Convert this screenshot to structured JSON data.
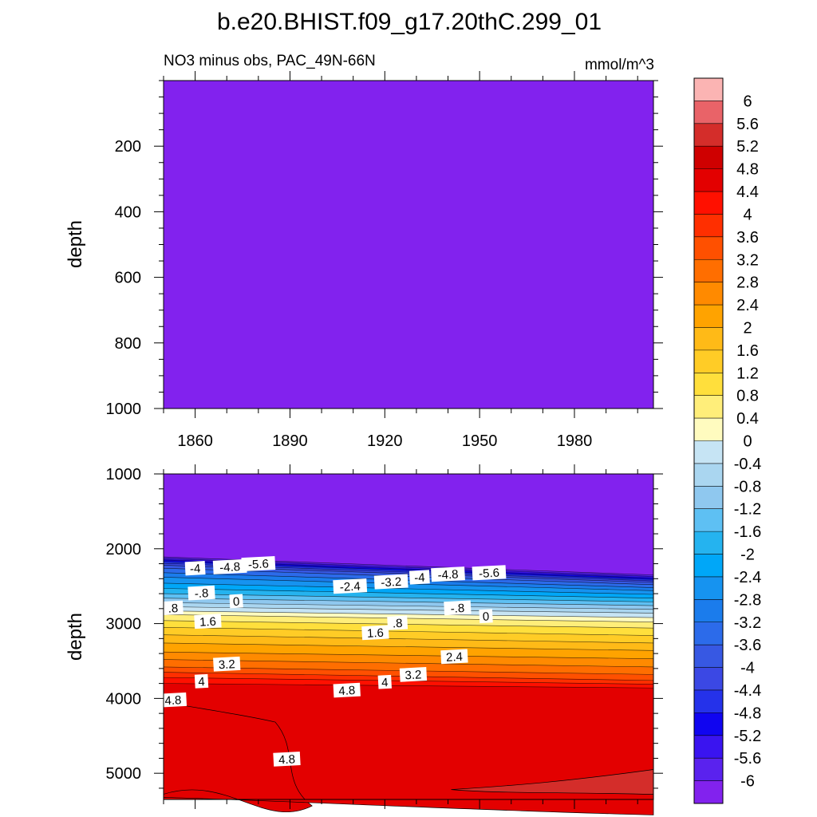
{
  "figure": {
    "title": "b.e20.BHIST.f09_g17.20thC.299_01",
    "left_subtitle": "NO3 minus obs, PAC_49N-66N",
    "right_subtitle": "mmol/m^3"
  },
  "chart_data": [
    {
      "type": "heatmap",
      "panel": "upper",
      "ylabel": "depth",
      "xlim": [
        1850,
        2005
      ],
      "ylim": [
        0,
        1000
      ],
      "y_reversed": true,
      "x_ticks": [
        1860,
        1890,
        1920,
        1950,
        1980
      ],
      "x_tick_labels": [
        "1860",
        "1890",
        "1920",
        "1950",
        "1980"
      ],
      "y_ticks": [
        200,
        400,
        600,
        800,
        1000
      ],
      "y_tick_labels": [
        "200",
        "400",
        "600",
        "800",
        "1000"
      ],
      "field": "uniform value below -6 (lowest color level) over the whole 0-1000 m range"
    },
    {
      "type": "heatmap",
      "panel": "lower",
      "ylabel": "depth",
      "xlim": [
        1850,
        2005
      ],
      "ylim": [
        1000,
        5350
      ],
      "y_reversed": true,
      "x_ticks": [
        1860,
        1890,
        1920,
        1950,
        1980
      ],
      "y_ticks": [
        1000,
        2000,
        3000,
        4000,
        5000
      ],
      "y_tick_labels": [
        "1000",
        "2000",
        "3000",
        "4000",
        "5000"
      ],
      "contour_levels": [
        -6,
        -5.6,
        -5.2,
        -4.8,
        -4.4,
        -4,
        -3.6,
        -3.2,
        -2.8,
        -2.4,
        -2,
        -1.6,
        -1.2,
        -0.8,
        -0.4,
        0,
        0.4,
        0.8,
        1.2,
        1.6,
        2,
        2.4,
        2.8,
        3.2,
        3.6,
        4,
        4.4,
        4.8,
        5.2,
        5.6,
        6
      ],
      "level_depths_start": [
        2110,
        2130,
        2150,
        2170,
        2195,
        2220,
        2260,
        2320,
        2380,
        2460,
        2530,
        2600,
        2660,
        2720,
        2775,
        2830,
        2880,
        2960,
        3050,
        3150,
        3260,
        3380,
        3480,
        3580,
        3650,
        3720,
        3800
      ],
      "level_depths_end": [
        2350,
        2370,
        2390,
        2410,
        2430,
        2450,
        2480,
        2520,
        2560,
        2610,
        2660,
        2710,
        2760,
        2810,
        2860,
        2920,
        2980,
        3060,
        3160,
        3260,
        3360,
        3470,
        3580,
        3680,
        3760,
        3810,
        3860
      ],
      "features": [
        {
          "description": "4.4 to 4.8 tongue near western boundary",
          "depth_top": 4050,
          "depth_bottom": 5280,
          "x_extent": [
            1850,
            1897
          ]
        },
        {
          "description": "5.2 to 5.6 patch in eastern deep region",
          "depth_top": 4950,
          "depth_bottom": 5250,
          "x_extent": [
            1941,
            2005
          ]
        }
      ],
      "contour_labels": [
        {
          "text": "-4",
          "x": 1860,
          "y": 2260
        },
        {
          "text": "-4.8",
          "x": 1871,
          "y": 2240
        },
        {
          "text": "-5.6",
          "x": 1880,
          "y": 2200
        },
        {
          "text": "-2.4",
          "x": 1909,
          "y": 2500
        },
        {
          "text": "-3.2",
          "x": 1922,
          "y": 2440
        },
        {
          "text": "-4",
          "x": 1931,
          "y": 2380
        },
        {
          "text": "-4.8",
          "x": 1940,
          "y": 2340
        },
        {
          "text": "-5.6",
          "x": 1953,
          "y": 2320
        },
        {
          "text": "-.8",
          "x": 1862,
          "y": 2590
        },
        {
          "text": "0",
          "x": 1873,
          "y": 2700
        },
        {
          "text": ".8",
          "x": 1853,
          "y": 2790
        },
        {
          "text": "1.6",
          "x": 1864,
          "y": 2970
        },
        {
          "text": "-.8",
          "x": 1943,
          "y": 2790
        },
        {
          "text": "0",
          "x": 1952,
          "y": 2900
        },
        {
          "text": ".8",
          "x": 1924,
          "y": 2990
        },
        {
          "text": "1.6",
          "x": 1917,
          "y": 3120
        },
        {
          "text": "2.4",
          "x": 1942,
          "y": 3440
        },
        {
          "text": "3.2",
          "x": 1870,
          "y": 3540
        },
        {
          "text": "4",
          "x": 1862,
          "y": 3770
        },
        {
          "text": "3.2",
          "x": 1929,
          "y": 3680
        },
        {
          "text": "4",
          "x": 1920,
          "y": 3780
        },
        {
          "text": "4.8",
          "x": 1908,
          "y": 3890
        },
        {
          "text": "4.8",
          "x": 1853,
          "y": 4020
        },
        {
          "text": "4.8",
          "x": 1889,
          "y": 4810
        }
      ]
    }
  ],
  "colorbar": {
    "labels": [
      "6",
      "5.6",
      "5.2",
      "4.8",
      "4.4",
      "4",
      "3.6",
      "3.2",
      "2.8",
      "2.4",
      "2",
      "1.6",
      "1.2",
      "0.8",
      "0.4",
      "0",
      "-0.4",
      "-0.8",
      "-1.2",
      "-1.6",
      "-2",
      "-2.4",
      "-2.8",
      "-3.2",
      "-3.6",
      "-4",
      "-4.4",
      "-4.8",
      "-5.2",
      "-5.6",
      "-6"
    ],
    "colors": [
      "#fbb4b3",
      "#e96368",
      "#d42d2a",
      "#cf0000",
      "#e30000",
      "#ff1000",
      "#ff2f00",
      "#ff5000",
      "#ff6e00",
      "#ff8a00",
      "#ffa300",
      "#ffba17",
      "#ffcc26",
      "#ffdf3c",
      "#ffee7a",
      "#fffbbf",
      "#c6e4f4",
      "#aad6f0",
      "#8fc8ef",
      "#5ec0f3",
      "#25b3ef",
      "#00a7f8",
      "#1693f0",
      "#1b7cec",
      "#2c6bea",
      "#3758e3",
      "#3b48e4",
      "#2532ea",
      "#1005f0",
      "#3a14f0",
      "#5a22ee",
      "#8222ee"
    ]
  }
}
